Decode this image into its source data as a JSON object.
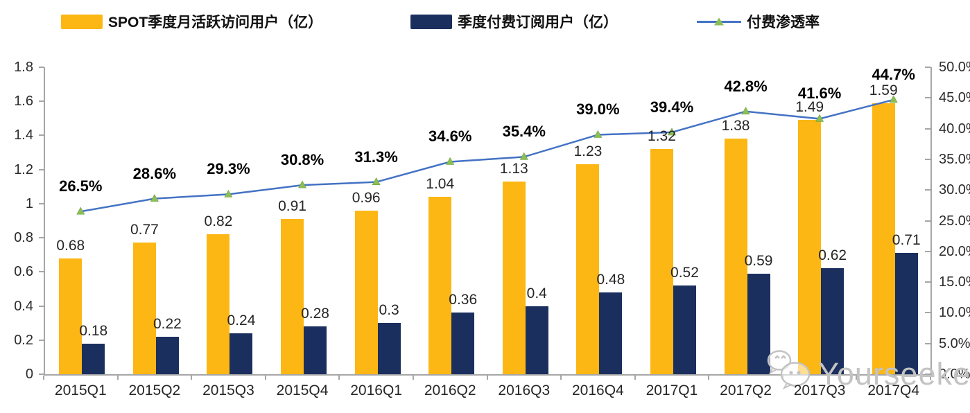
{
  "chart_data": {
    "type": "bar",
    "subtype": "grouped-bars-with-line-combo",
    "title": "",
    "categories": [
      "2015Q1",
      "2015Q2",
      "2015Q3",
      "2015Q4",
      "2016Q1",
      "2016Q2",
      "2016Q3",
      "2016Q4",
      "2017Q1",
      "2017Q2",
      "2017Q3",
      "2017Q4"
    ],
    "series": [
      {
        "name": "SPOT季度月活跃访问用户（亿）",
        "type": "bar",
        "axis": "left",
        "color": "#FCB714",
        "values": [
          0.68,
          0.77,
          0.82,
          0.91,
          0.96,
          1.04,
          1.13,
          1.23,
          1.32,
          1.38,
          1.49,
          1.59
        ],
        "labels": [
          "0.68",
          "0.77",
          "0.82",
          "0.91",
          "0.96",
          "1.04",
          "1.13",
          "1.23",
          "1.32",
          "1.38",
          "1.49",
          "1.59"
        ]
      },
      {
        "name": "季度付费订阅用户（亿）",
        "type": "bar",
        "axis": "left",
        "color": "#1B2F5F",
        "values": [
          0.18,
          0.22,
          0.24,
          0.28,
          0.3,
          0.36,
          0.4,
          0.48,
          0.52,
          0.59,
          0.62,
          0.71
        ],
        "labels": [
          "0.18",
          "0.22",
          "0.24",
          "0.28",
          "0.3",
          "0.36",
          "0.4",
          "0.48",
          "0.52",
          "0.59",
          "0.62",
          "0.71"
        ]
      },
      {
        "name": "付费渗透率",
        "type": "line",
        "axis": "right",
        "color": "#4472C4",
        "marker": "triangle",
        "marker_color": "#8CBE57",
        "values": [
          26.5,
          28.6,
          29.3,
          30.8,
          31.3,
          34.6,
          35.4,
          39.0,
          39.4,
          42.8,
          41.6,
          44.7
        ],
        "labels": [
          "26.5%",
          "28.6%",
          "29.3%",
          "30.8%",
          "31.3%",
          "34.6%",
          "35.4%",
          "39.0%",
          "39.4%",
          "42.8%",
          "41.6%",
          "44.7%"
        ]
      }
    ],
    "left_axis": {
      "min": 0,
      "max": 1.8,
      "step": 0.2,
      "tick_labels": [
        "0",
        "0.2",
        "0.4",
        "0.6",
        "0.8",
        "1",
        "1.2",
        "1.4",
        "1.6",
        "1.8"
      ]
    },
    "right_axis": {
      "min": 0,
      "max": 50,
      "step": 5,
      "tick_labels": [
        "0.0%",
        "5.0%",
        "10.0%",
        "15.0%",
        "20.0%",
        "25.0%",
        "30.0%",
        "35.0%",
        "40.0%",
        "45.0%",
        "50.0%"
      ]
    },
    "grid": false,
    "legend_position": "top"
  },
  "colors": {
    "bar_yellow": "#FCB714",
    "bar_navy": "#1B2F5F",
    "line_blue": "#4472C4",
    "marker_green": "#8CBE57",
    "axis_gray": "#A6A6A6",
    "watermark_gray": "#C3C3C3"
  },
  "watermark": {
    "text": "Yourseeker",
    "icon": "wechat-icon"
  }
}
